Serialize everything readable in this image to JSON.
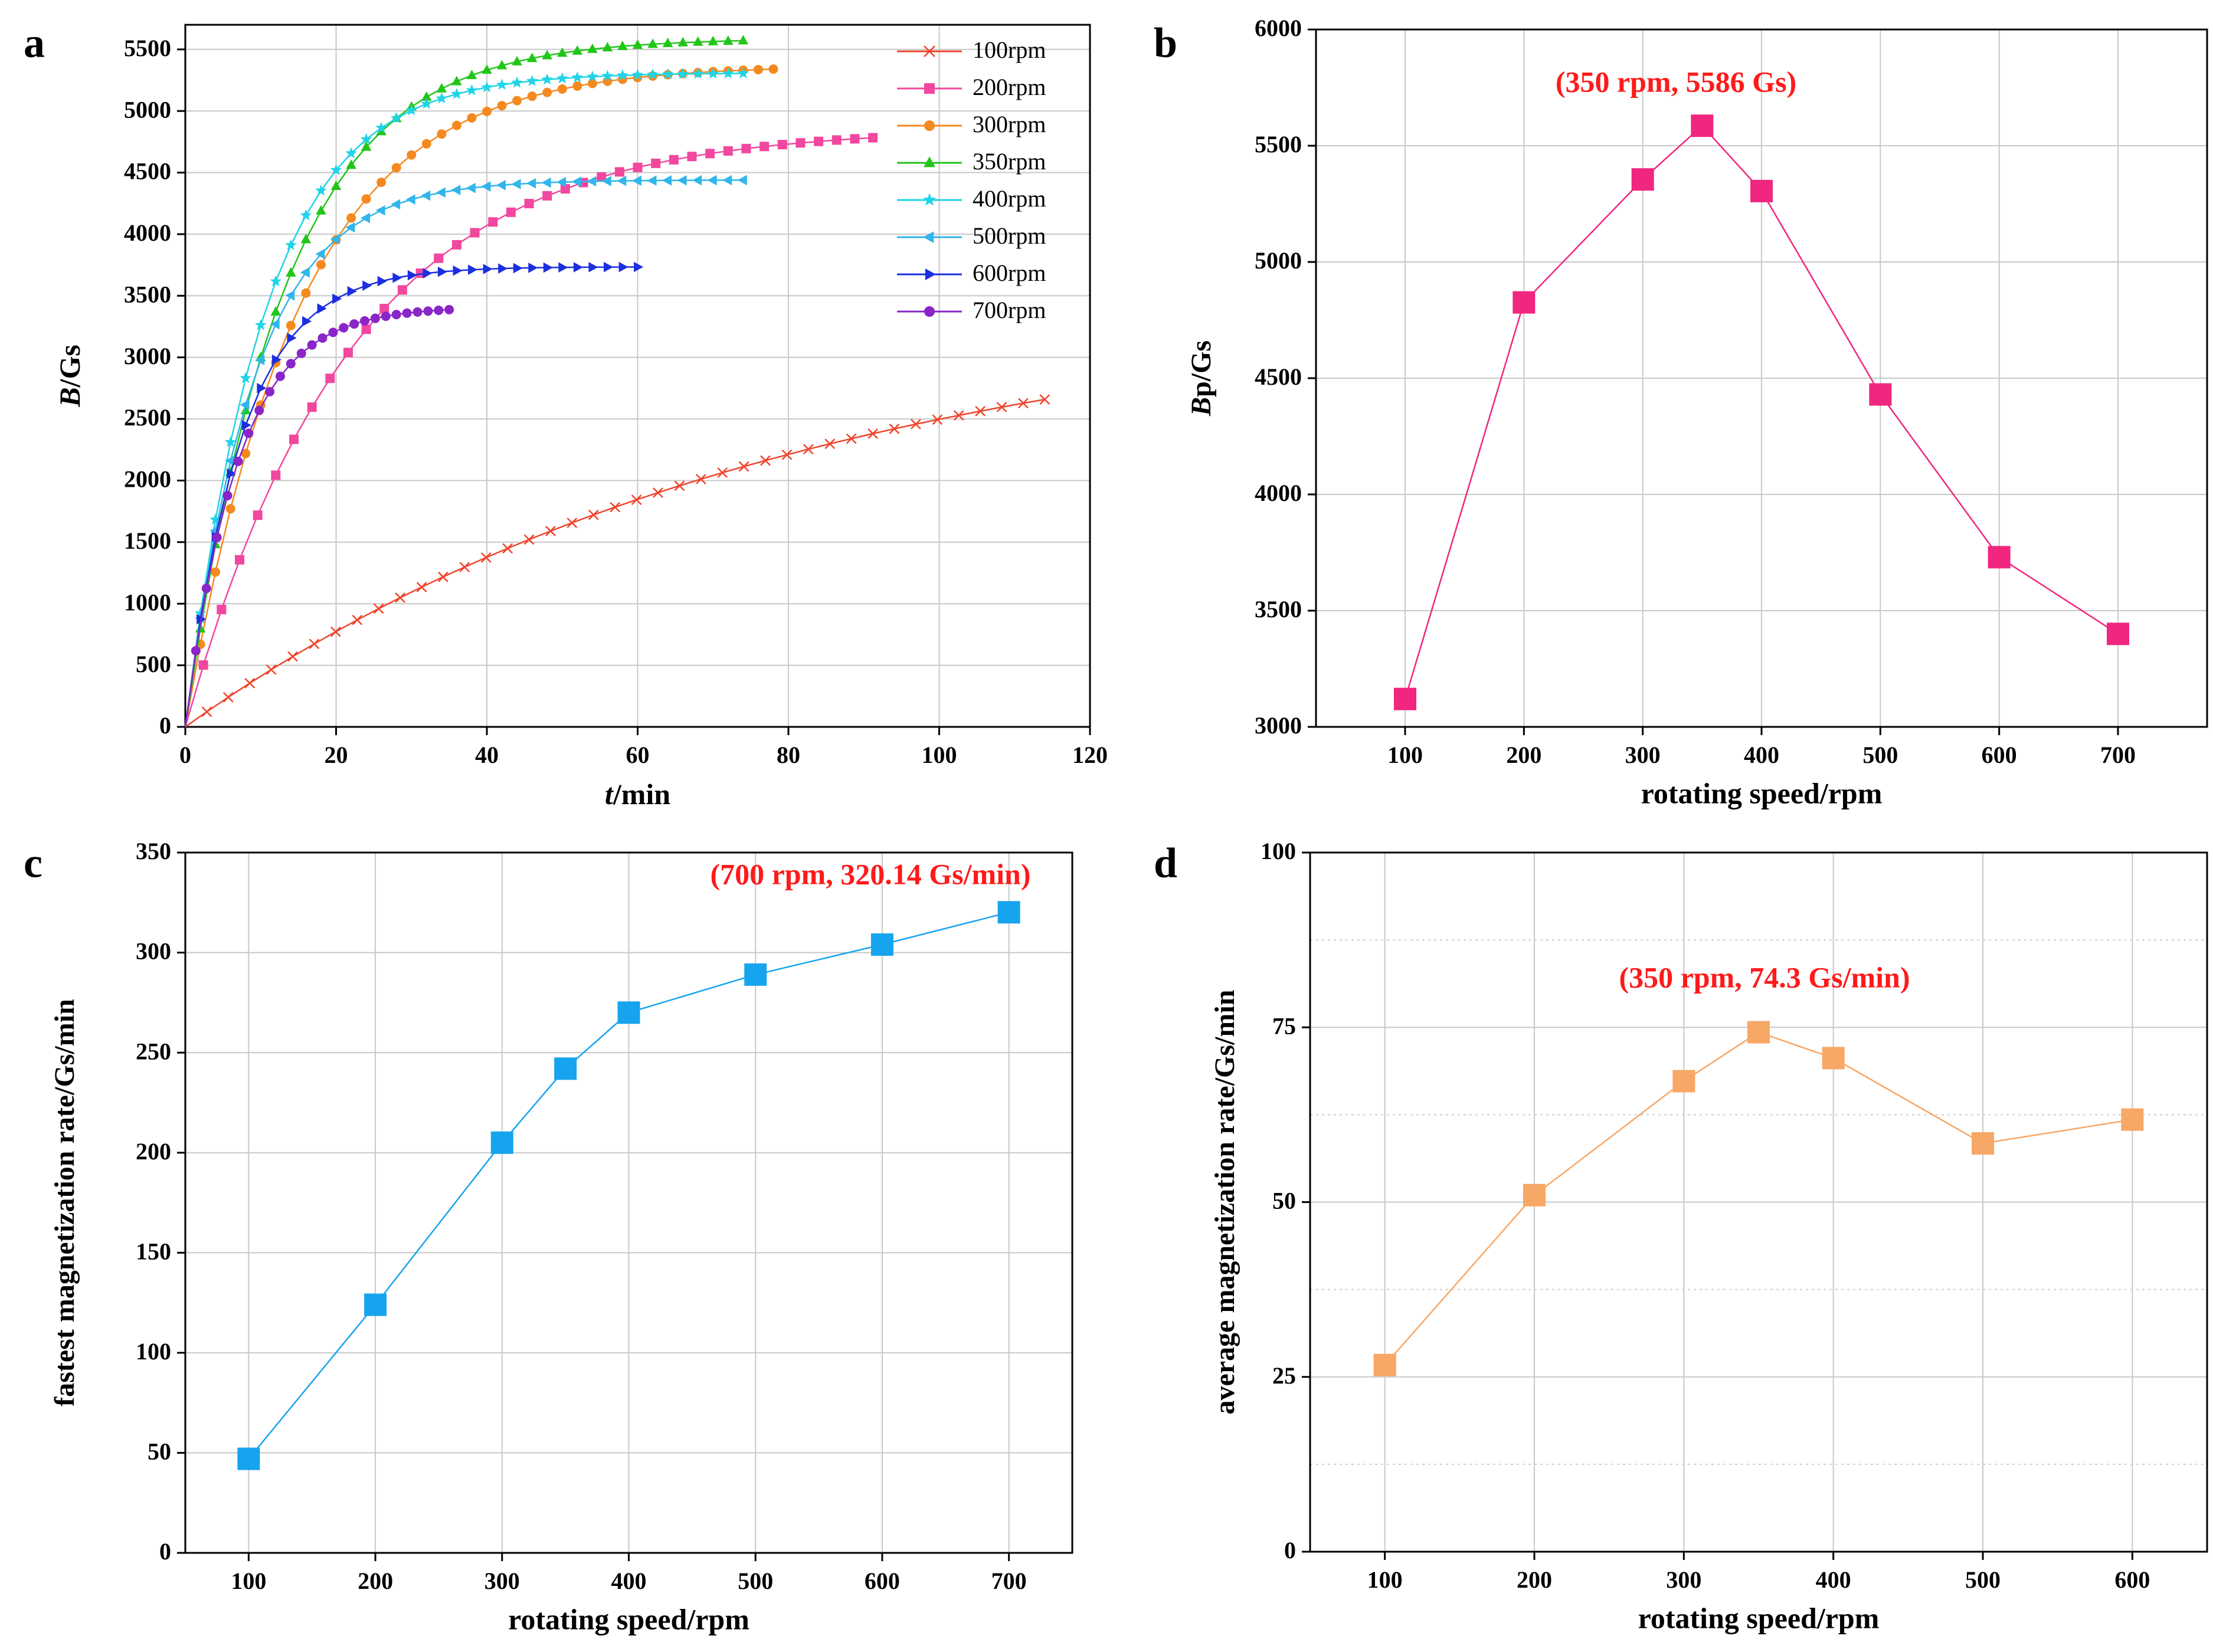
{
  "chart_data": [
    {
      "panel": "a",
      "type": "line",
      "xlabel": "t/min",
      "ylabel": "B/Gs",
      "xlim": [
        0,
        120
      ],
      "ylim": [
        0,
        5700
      ],
      "xticks": [
        0,
        20,
        40,
        60,
        80,
        100,
        120
      ],
      "yticks": [
        0,
        500,
        1000,
        1500,
        2000,
        2500,
        3000,
        3500,
        4000,
        4500,
        5000,
        5500
      ],
      "grid": true,
      "legend_position": "top-right",
      "series": [
        {
          "name": "100rpm",
          "color": "#f0442c",
          "marker": "x",
          "B_max": 3500,
          "tau": 80,
          "t_end": 114,
          "dt": 2.85
        },
        {
          "name": "200rpm",
          "color": "#f2479e",
          "marker": "square",
          "B_max": 4860,
          "tau": 22,
          "t_end": 93,
          "dt": 2.4
        },
        {
          "name": "300rpm",
          "color": "#f48a1f",
          "marker": "circle",
          "B_max": 5370,
          "tau": 15,
          "t_end": 79,
          "dt": 2.0
        },
        {
          "name": "350rpm",
          "color": "#22c61a",
          "marker": "triangle-up",
          "B_max": 5590,
          "tau": 13,
          "t_end": 75,
          "dt": 2.0
        },
        {
          "name": "400rpm",
          "color": "#1fd4e6",
          "marker": "star",
          "B_max": 5310,
          "tau": 10.5,
          "t_end": 75,
          "dt": 2.0
        },
        {
          "name": "500rpm",
          "color": "#30b6ea",
          "marker": "triangle-left",
          "B_max": 4440,
          "tau": 9,
          "t_end": 75,
          "dt": 2.0
        },
        {
          "name": "600rpm",
          "color": "#1b2fe0",
          "marker": "triangle-right",
          "B_max": 3735,
          "tau": 7.5,
          "t_end": 60,
          "dt": 2.0
        },
        {
          "name": "700rpm",
          "color": "#8a25c8",
          "marker": "circle",
          "B_max": 3410,
          "tau": 7,
          "t_end": 35,
          "dt": 1.4
        }
      ]
    },
    {
      "panel": "b",
      "type": "line",
      "xlabel": "rotating speed/rpm",
      "ylabel": "Bp/Gs",
      "x": [
        100,
        200,
        300,
        350,
        400,
        500,
        600,
        700
      ],
      "y": [
        3120,
        4826,
        5355,
        5586,
        5305,
        4430,
        3730,
        3400
      ],
      "xlim": [
        25,
        775
      ],
      "ylim": [
        3000,
        6000
      ],
      "xticks": [
        100,
        200,
        300,
        400,
        500,
        600,
        700
      ],
      "yticks": [
        3000,
        3500,
        4000,
        4500,
        5000,
        5500,
        6000
      ],
      "annotation": "(350 rpm, 5586 Gs)",
      "color": "#f0267f",
      "grid": true
    },
    {
      "panel": "c",
      "type": "line",
      "xlabel": "rotating speed/rpm",
      "ylabel": "fastest magnetization rate/Gs/min",
      "x": [
        100,
        200,
        300,
        350,
        400,
        500,
        600,
        700
      ],
      "y": [
        47,
        124,
        205,
        242,
        270,
        289,
        304,
        320.14
      ],
      "xlim": [
        50,
        750
      ],
      "ylim": [
        0,
        350
      ],
      "xticks": [
        100,
        200,
        300,
        400,
        500,
        600,
        700
      ],
      "yticks": [
        0,
        50,
        100,
        150,
        200,
        250,
        300,
        350
      ],
      "annotation": "(700 rpm, 320.14 Gs/min)",
      "color": "#17a4ee",
      "grid": true
    },
    {
      "panel": "d",
      "type": "line",
      "xlabel": "rotating speed/rpm",
      "ylabel": "average magnetization rate/Gs/min",
      "x": [
        100,
        200,
        300,
        350,
        400,
        500,
        600
      ],
      "y": [
        26.7,
        51.0,
        67.3,
        74.3,
        70.6,
        58.4,
        61.8
      ],
      "xlim": [
        50,
        650
      ],
      "ylim": [
        0,
        100
      ],
      "xticks": [
        100,
        200,
        300,
        400,
        500,
        600
      ],
      "yticks": [
        0,
        25,
        50,
        75,
        100
      ],
      "annotation": "(350 rpm, 74.3 Gs/min)",
      "color": "#f7a766",
      "grid": true
    }
  ]
}
